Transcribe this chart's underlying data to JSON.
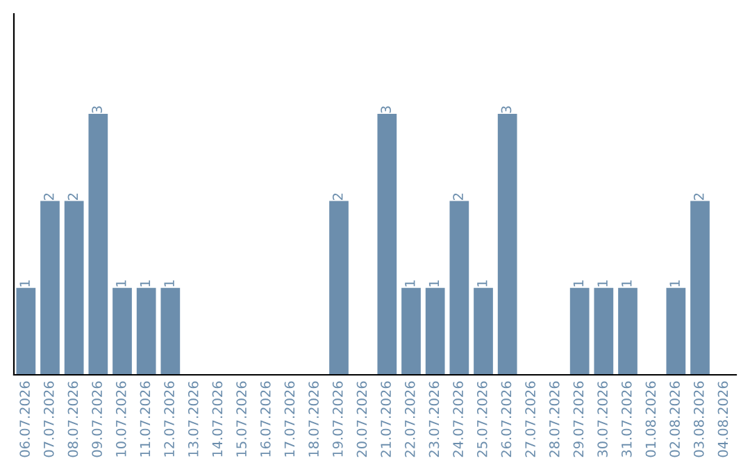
{
  "chart_data": {
    "type": "bar",
    "categories": [
      "06.07.2026",
      "07.07.2026",
      "08.07.2026",
      "09.07.2026",
      "10.07.2026",
      "11.07.2026",
      "12.07.2026",
      "13.07.2026",
      "14.07.2026",
      "15.07.2026",
      "16.07.2026",
      "17.07.2026",
      "18.07.2026",
      "19.07.2026",
      "20.07.2026",
      "21.07.2026",
      "22.07.2026",
      "23.07.2026",
      "24.07.2026",
      "25.07.2026",
      "26.07.2026",
      "27.07.2026",
      "28.07.2026",
      "29.07.2026",
      "30.07.2026",
      "31.07.2026",
      "01.08.2026",
      "02.08.2026",
      "03.08.2026",
      "04.08.2026"
    ],
    "values": [
      1,
      2,
      2,
      3,
      1,
      1,
      1,
      0,
      0,
      0,
      0,
      0,
      0,
      2,
      0,
      3,
      1,
      1,
      2,
      1,
      3,
      0,
      0,
      1,
      1,
      1,
      0,
      1,
      2,
      0
    ],
    "value_labels": [
      "1",
      "2",
      "2",
      "3",
      "1",
      "1",
      "1",
      null,
      null,
      null,
      null,
      null,
      null,
      "2",
      null,
      "3",
      "1",
      "1",
      "2",
      "1",
      "3",
      null,
      null,
      "1",
      "1",
      "1",
      null,
      "1",
      "2",
      null
    ],
    "color": "#6c8ead",
    "ylim": [
      0,
      4.15
    ],
    "tick_labels": "x",
    "grid": false,
    "legend": false
  }
}
